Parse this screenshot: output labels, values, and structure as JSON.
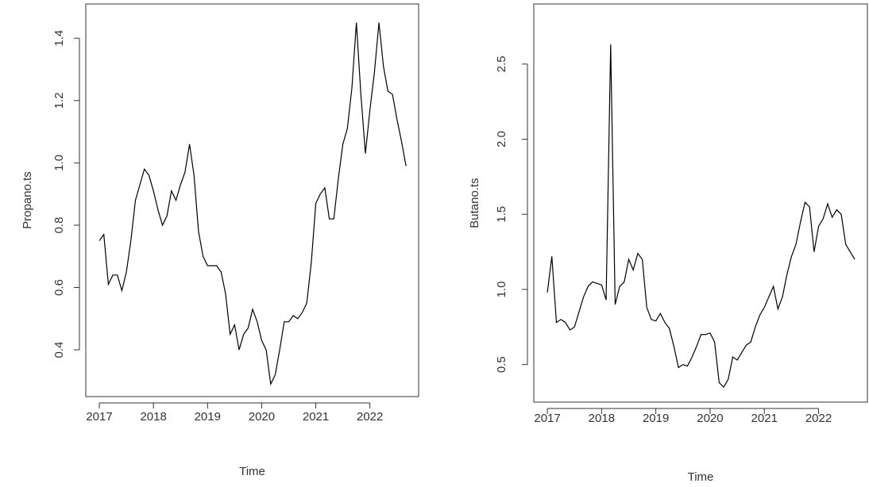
{
  "chart_data": [
    {
      "type": "line",
      "xlabel": "Time",
      "ylabel": "Propano.ts",
      "color": "#000000",
      "x": [
        2017,
        2017.083,
        2017.167,
        2017.25,
        2017.333,
        2017.417,
        2017.5,
        2017.583,
        2017.667,
        2017.75,
        2017.833,
        2017.917,
        2018,
        2018.083,
        2018.167,
        2018.25,
        2018.333,
        2018.417,
        2018.5,
        2018.583,
        2018.667,
        2018.75,
        2018.833,
        2018.917,
        2019,
        2019.083,
        2019.167,
        2019.25,
        2019.333,
        2019.417,
        2019.5,
        2019.583,
        2019.667,
        2019.75,
        2019.833,
        2019.917,
        2020,
        2020.083,
        2020.167,
        2020.25,
        2020.333,
        2020.417,
        2020.5,
        2020.583,
        2020.667,
        2020.75,
        2020.833,
        2020.917,
        2021,
        2021.083,
        2021.167,
        2021.25,
        2021.333,
        2021.417,
        2021.5,
        2021.583,
        2021.667,
        2021.75,
        2021.833,
        2021.917,
        2022,
        2022.083,
        2022.167,
        2022.25,
        2022.333,
        2022.417,
        2022.5,
        2022.583,
        2022.667
      ],
      "values": [
        0.75,
        0.77,
        0.61,
        0.64,
        0.64,
        0.59,
        0.65,
        0.75,
        0.88,
        0.93,
        0.98,
        0.96,
        0.91,
        0.85,
        0.8,
        0.83,
        0.91,
        0.88,
        0.93,
        0.97,
        1.06,
        0.96,
        0.78,
        0.7,
        0.67,
        0.67,
        0.67,
        0.65,
        0.58,
        0.45,
        0.48,
        0.4,
        0.45,
        0.47,
        0.53,
        0.49,
        0.43,
        0.4,
        0.29,
        0.32,
        0.4,
        0.49,
        0.49,
        0.51,
        0.5,
        0.52,
        0.55,
        0.68,
        0.87,
        0.9,
        0.92,
        0.82,
        0.82,
        0.95,
        1.06,
        1.11,
        1.24,
        1.45,
        1.22,
        1.03,
        1.17,
        1.29,
        1.45,
        1.31,
        1.23,
        1.22,
        1.14,
        1.07,
        0.99
      ],
      "xlim": [
        2016.75,
        2022.9
      ],
      "xticks": [
        2017,
        2018,
        2019,
        2020,
        2021,
        2022
      ],
      "ylim": [
        0.25,
        1.51
      ],
      "yticks": [
        0.4,
        0.6,
        0.8,
        {
          "value": 1,
          "label": "1.0"
        },
        1.2,
        1.4
      ]
    },
    {
      "type": "line",
      "xlabel": "Time",
      "ylabel": "Butano.ts",
      "color": "#000000",
      "x": [
        2017,
        2017.083,
        2017.167,
        2017.25,
        2017.333,
        2017.417,
        2017.5,
        2017.583,
        2017.667,
        2017.75,
        2017.833,
        2017.917,
        2018,
        2018.083,
        2018.167,
        2018.25,
        2018.333,
        2018.417,
        2018.5,
        2018.583,
        2018.667,
        2018.75,
        2018.833,
        2018.917,
        2019,
        2019.083,
        2019.167,
        2019.25,
        2019.333,
        2019.417,
        2019.5,
        2019.583,
        2019.667,
        2019.75,
        2019.833,
        2019.917,
        2020,
        2020.083,
        2020.167,
        2020.25,
        2020.333,
        2020.417,
        2020.5,
        2020.583,
        2020.667,
        2020.75,
        2020.833,
        2020.917,
        2021,
        2021.083,
        2021.167,
        2021.25,
        2021.333,
        2021.417,
        2021.5,
        2021.583,
        2021.667,
        2021.75,
        2021.833,
        2021.917,
        2022,
        2022.083,
        2022.167,
        2022.25,
        2022.333,
        2022.417,
        2022.5,
        2022.583,
        2022.667
      ],
      "values": [
        0.98,
        1.22,
        0.78,
        0.8,
        0.78,
        0.73,
        0.75,
        0.85,
        0.95,
        1.02,
        1.05,
        1.04,
        1.03,
        0.93,
        2.63,
        0.9,
        1.02,
        1.05,
        1.2,
        1.13,
        1.24,
        1.2,
        0.88,
        0.8,
        0.79,
        0.84,
        0.78,
        0.74,
        0.62,
        0.48,
        0.5,
        0.49,
        0.55,
        0.62,
        0.7,
        0.7,
        0.71,
        0.65,
        0.38,
        0.35,
        0.4,
        0.55,
        0.53,
        0.58,
        0.63,
        0.65,
        0.75,
        0.83,
        0.88,
        0.95,
        1.02,
        0.87,
        0.95,
        1.1,
        1.22,
        1.3,
        1.45,
        1.58,
        1.55,
        1.25,
        1.42,
        1.47,
        1.57,
        1.48,
        1.53,
        1.5,
        1.3,
        1.25,
        1.2
      ],
      "xlim": [
        2016.75,
        2022.9
      ],
      "xticks": [
        2017,
        2018,
        2019,
        2020,
        2021,
        2022
      ],
      "ylim": [
        0.25,
        2.9
      ],
      "yticks": [
        0.5,
        {
          "value": 1,
          "label": "1.0"
        },
        1.5,
        {
          "value": 2,
          "label": "2.0"
        },
        2.5
      ]
    }
  ]
}
